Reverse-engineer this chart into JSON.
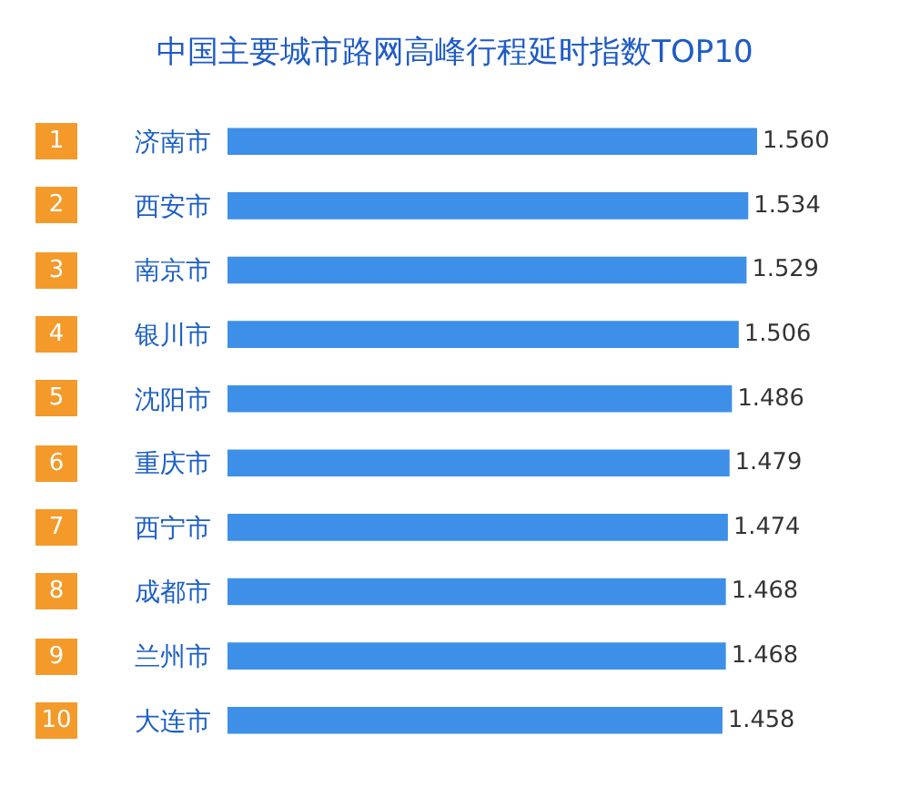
{
  "chart_data": {
    "type": "bar",
    "orientation": "horizontal",
    "title": "中国主要城市路网高峰行程延时指数TOP10",
    "categories": [
      "济南市",
      "西安市",
      "南京市",
      "银川市",
      "沈阳市",
      "重庆市",
      "西宁市",
      "成都市",
      "兰州市",
      "大连市"
    ],
    "values": [
      1.56,
      1.534,
      1.529,
      1.506,
      1.486,
      1.479,
      1.474,
      1.468,
      1.468,
      1.458
    ],
    "value_labels": [
      "1.560",
      "1.534",
      "1.529",
      "1.506",
      "1.486",
      "1.479",
      "1.474",
      "1.468",
      "1.468",
      "1.458"
    ],
    "color": "#3d8fe8",
    "annotations": [
      "1",
      "2",
      "3",
      "4",
      "5",
      "6",
      "7",
      "8",
      "9",
      "10"
    ]
  }
}
